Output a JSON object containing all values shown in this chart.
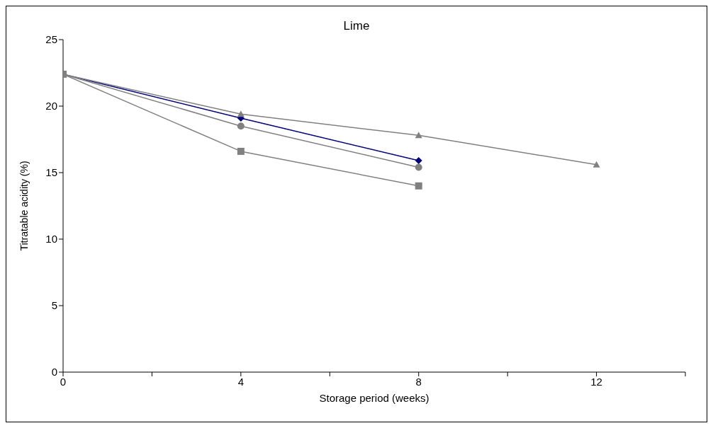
{
  "chart_data": {
    "type": "line",
    "title": "Lime",
    "xlabel": "Storage period (weeks)",
    "ylabel": "Titratable acidity (%)",
    "x": [
      0,
      4,
      8,
      12
    ],
    "series": [
      {
        "color": "#000080",
        "marker": "diamond",
        "values": [
          22.4,
          19.1,
          15.9,
          null
        ]
      },
      {
        "color": "#808080",
        "marker": "circle",
        "values": [
          22.4,
          18.5,
          15.4,
          null
        ]
      },
      {
        "color": "#808080",
        "marker": "square",
        "values": [
          22.4,
          16.6,
          14.0,
          null
        ]
      },
      {
        "color": "#808080",
        "marker": "triangle",
        "values": [
          22.4,
          19.4,
          17.8,
          15.6
        ]
      }
    ],
    "xlim": [
      0,
      14
    ],
    "xticks": [
      0,
      {
        "value": 2,
        "label": null
      },
      4,
      {
        "value": 6,
        "label": null
      },
      8,
      {
        "value": 10,
        "label": null
      },
      12,
      {
        "value": 14,
        "label": null
      }
    ],
    "ylim": [
      0,
      25
    ],
    "yticks": [
      0,
      5,
      10,
      15,
      20,
      25
    ],
    "grid": false,
    "legend": false
  }
}
